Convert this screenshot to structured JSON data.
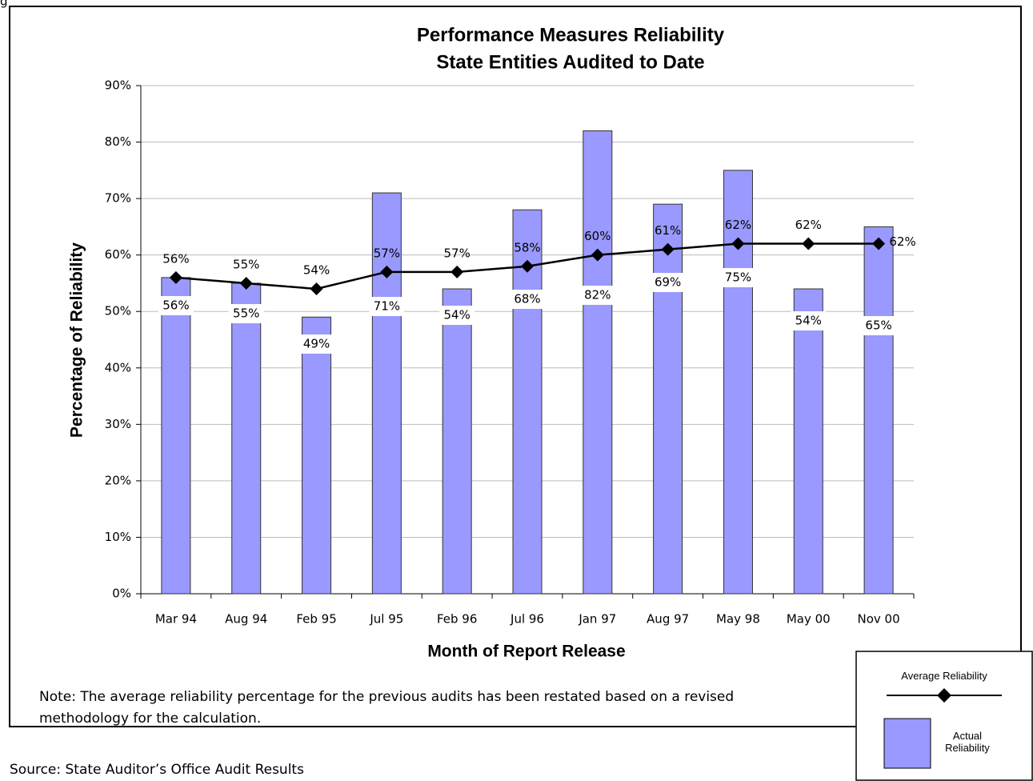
{
  "page_fragment": "g",
  "chart_data": {
    "type": "bar-line",
    "title": "Performance Measures Reliability",
    "subtitle": "State Entities Audited to Date",
    "y_label": "Percentage of Reliability",
    "x_label": "Month of Report Release",
    "categories": [
      "Mar 94",
      "Aug 94",
      "Feb 95",
      "Jul 95",
      "Feb 96",
      "Jul 96",
      "Jan 97",
      "Aug 97",
      "May 98",
      "May 00",
      "Nov 00"
    ],
    "series": [
      {
        "name": "Actual Reliability",
        "type": "bar",
        "color": "#9999ff",
        "values": [
          56,
          55,
          49,
          71,
          54,
          68,
          82,
          69,
          75,
          54,
          65
        ],
        "value_labels": [
          "56%",
          "55%",
          "49%",
          "71%",
          "54%",
          "68%",
          "82%",
          "69%",
          "75%",
          "54%",
          "65%"
        ]
      },
      {
        "name": "Average Reliability",
        "type": "line",
        "color": "#000000",
        "values": [
          56,
          55,
          54,
          57,
          57,
          58,
          60,
          61,
          62,
          62,
          62
        ],
        "value_labels": [
          "56%",
          "55%",
          "54%",
          "57%",
          "57%",
          "58%",
          "60%",
          "61%",
          "62%",
          "62%",
          "62%"
        ]
      }
    ],
    "ylim": [
      0,
      90
    ],
    "yticks": [
      {
        "value": 0,
        "label": "0%"
      },
      {
        "value": 10,
        "label": "10%"
      },
      {
        "value": 20,
        "label": "20%"
      },
      {
        "value": 30,
        "label": "30%"
      },
      {
        "value": 40,
        "label": "40%"
      },
      {
        "value": 50,
        "label": "50%"
      },
      {
        "value": 60,
        "label": "60%"
      },
      {
        "value": 70,
        "label": "70%"
      },
      {
        "value": 80,
        "label": "80%"
      },
      {
        "value": 90,
        "label": "90%"
      }
    ],
    "grid": true,
    "legend": "bottom-right",
    "note": "Note: The average reliability percentage for the previous audits has been restated based on a revised methodology for the calculation.",
    "source": "Source: State Auditor’s Office Audit Results"
  }
}
